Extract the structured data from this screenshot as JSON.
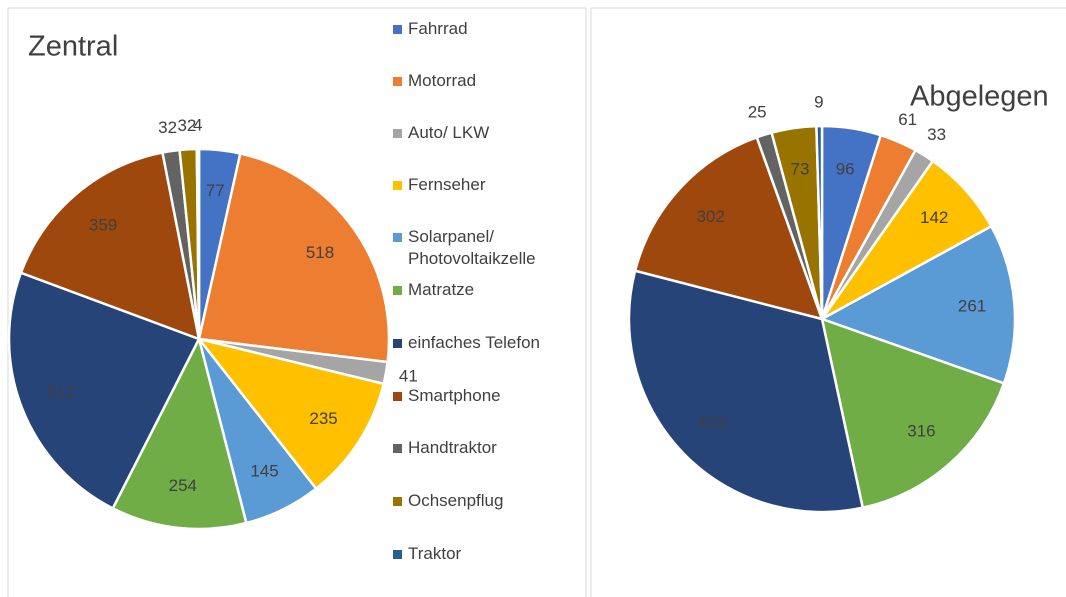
{
  "chart_data": [
    {
      "type": "pie",
      "title": "Zentral",
      "categories": [
        "Fahrrad",
        "Motorrad",
        "Auto/ LKW",
        "Fernseher",
        "Solarpanel/ Photovoltaikzelle",
        "Matratze",
        "einfaches Telefon",
        "Smartphone",
        "Handtraktor",
        "Ochsenpflug",
        "Traktor"
      ],
      "colors": [
        "#4472c4",
        "#ed7d31",
        "#a5a5a5",
        "#ffc000",
        "#5b9bd5",
        "#70ad47",
        "#264478",
        "#9e480e",
        "#636363",
        "#997300",
        "#255e91"
      ],
      "values": [
        77,
        518,
        41,
        235,
        145,
        254,
        512,
        359,
        32,
        32,
        4
      ]
    },
    {
      "type": "pie",
      "title": "Abgelegen",
      "values": [
        96,
        61,
        33,
        142,
        261,
        316,
        632,
        302,
        25,
        73,
        9
      ]
    }
  ]
}
